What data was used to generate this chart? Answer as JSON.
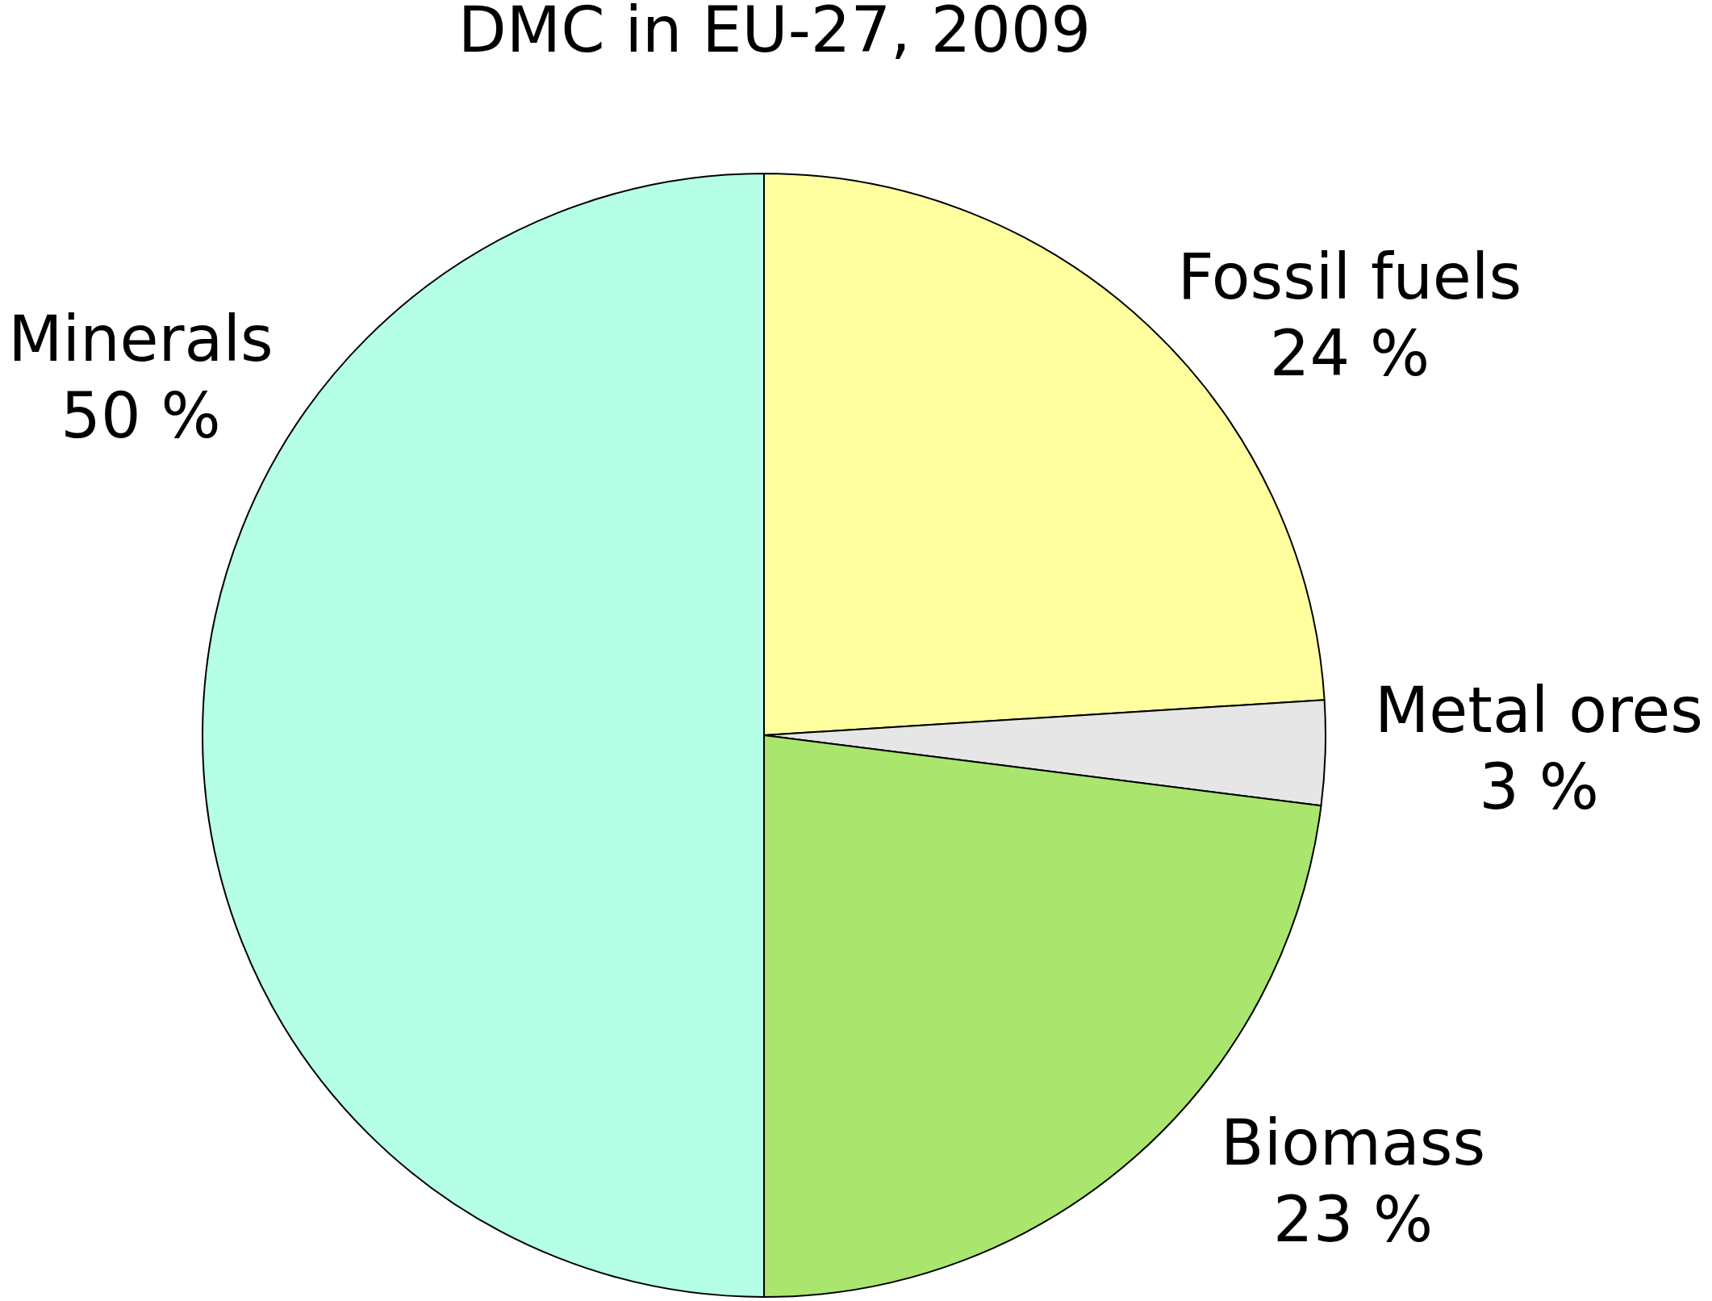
{
  "chart_data": {
    "type": "pie",
    "title": "DMC in EU-27, 2009",
    "categories": [
      "Fossil fuels",
      "Metal ores",
      "Biomass",
      "Minerals"
    ],
    "values": [
      24,
      3,
      23,
      50
    ],
    "colors": [
      "#ffffa0",
      "#e6e6e6",
      "#aae66e",
      "#b4ffe6"
    ],
    "value_labels": [
      "24 %",
      "3 %",
      "23 %",
      "50 %"
    ]
  }
}
